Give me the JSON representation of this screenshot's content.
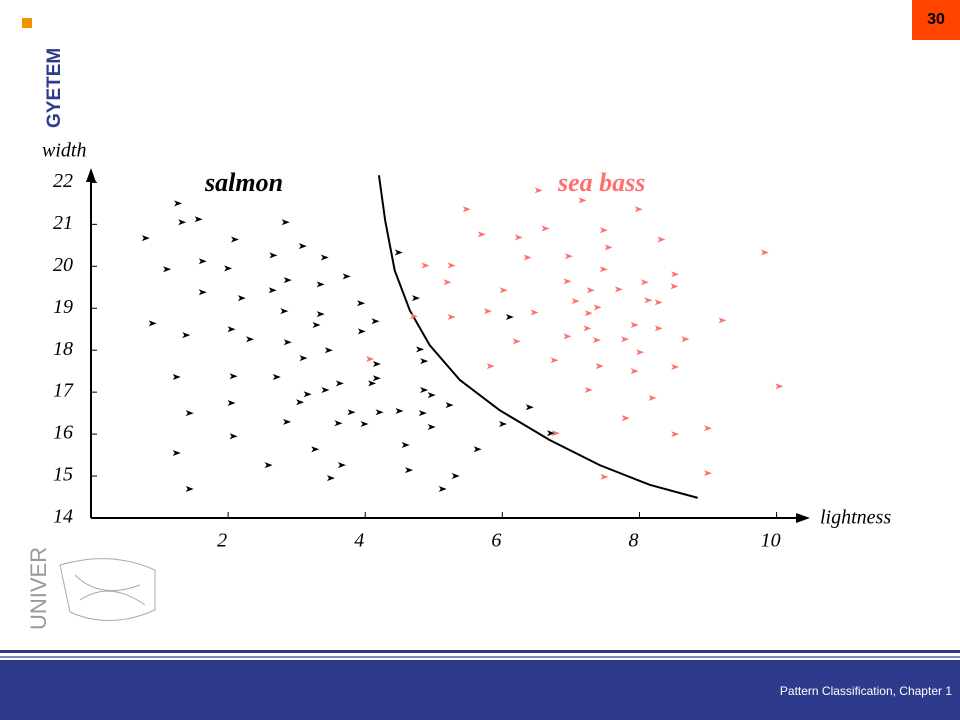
{
  "slide_number": "30",
  "logo_text": "GYETEM",
  "side_text": "UNIVER",
  "footer": "Pattern Classification, Chapter 1",
  "chart_data": {
    "type": "scatter",
    "x_label": "lightness",
    "y_label": "width",
    "xlim": [
      0,
      10.4
    ],
    "ylim": [
      14,
      22.2
    ],
    "xticks": [
      2,
      4,
      6,
      8,
      10
    ],
    "yticks": [
      14,
      15,
      16,
      17,
      18,
      19,
      20,
      21,
      22
    ],
    "series": [
      {
        "name": "salmon",
        "color": "#000000",
        "x": [
          0.8,
          1.27,
          1.33,
          1.57,
          0.9,
          1.11,
          1.63,
          1.63,
          1.39,
          1.25,
          1.44,
          1.25,
          1.44,
          2.1,
          2.0,
          2.2,
          2.05,
          2.32,
          2.08,
          2.05,
          2.08,
          2.59,
          2.84,
          2.66,
          2.87,
          2.65,
          2.82,
          2.87,
          2.71,
          2.86,
          3.09,
          3.41,
          3.1,
          3.29,
          3.35,
          3.35,
          3.05,
          3.16,
          3.42,
          3.47,
          3.27,
          3.5,
          3.66,
          3.63,
          3.61,
          3.8,
          3.73,
          3.94,
          3.95,
          3.99,
          4.15,
          4.17,
          4.17,
          4.1,
          4.21,
          4.49,
          4.74,
          4.5,
          4.59,
          4.64,
          4.8,
          4.86,
          4.86,
          4.84,
          4.97,
          4.97,
          5.23,
          5.13,
          5.32,
          5.64,
          6.01,
          6.11,
          6.4,
          6.71
        ],
        "y": [
          20.67,
          21.5,
          21.05,
          21.12,
          18.64,
          19.93,
          20.12,
          19.38,
          18.36,
          17.36,
          16.5,
          15.55,
          14.69,
          20.64,
          19.95,
          19.24,
          18.5,
          18.26,
          17.38,
          16.74,
          15.95,
          15.26,
          21.05,
          20.26,
          19.67,
          19.43,
          18.93,
          18.19,
          17.36,
          16.29,
          20.48,
          20.21,
          17.81,
          18.6,
          18.86,
          19.57,
          16.76,
          16.95,
          17.05,
          18.0,
          15.64,
          14.95,
          15.26,
          17.21,
          16.26,
          16.52,
          19.76,
          19.12,
          18.45,
          16.24,
          18.69,
          17.67,
          17.33,
          17.21,
          16.52,
          20.33,
          19.24,
          16.55,
          15.74,
          15.14,
          18.02,
          17.74,
          17.05,
          16.5,
          16.17,
          16.93,
          16.69,
          14.69,
          15.0,
          15.64,
          16.24,
          18.79,
          16.64,
          16.02
        ]
      },
      {
        "name": "sea bass",
        "color": "#ff6f6f",
        "x": [
          5.48,
          5.7,
          6.53,
          7.17,
          7.99,
          4.88,
          5.26,
          5.2,
          4.71,
          5.26,
          5.79,
          6.02,
          6.24,
          6.37,
          6.63,
          6.21,
          6.47,
          5.83,
          6.76,
          6.95,
          7.07,
          6.97,
          7.29,
          7.26,
          7.39,
          7.48,
          7.55,
          7.48,
          7.7,
          8.08,
          8.32,
          8.13,
          8.28,
          8.52,
          8.51,
          8.28,
          7.93,
          7.38,
          7.24,
          6.95,
          7.79,
          8.01,
          7.93,
          7.42,
          7.26,
          8.52,
          8.67,
          9.21,
          9.83,
          10.04,
          8.19,
          7.8,
          8.52,
          9.0,
          9.0,
          7.49,
          6.78,
          4.07
        ],
        "y": [
          21.36,
          20.76,
          21.81,
          21.57,
          21.36,
          20.02,
          20.02,
          19.62,
          18.81,
          18.79,
          18.93,
          19.43,
          20.69,
          20.21,
          20.9,
          18.21,
          18.9,
          17.62,
          17.76,
          19.64,
          19.17,
          20.24,
          19.43,
          18.88,
          19.02,
          20.86,
          20.45,
          19.93,
          19.45,
          19.62,
          20.64,
          19.19,
          19.14,
          19.81,
          19.52,
          18.52,
          18.6,
          18.24,
          18.52,
          18.33,
          18.26,
          17.95,
          17.5,
          17.62,
          17.05,
          17.6,
          18.26,
          18.71,
          20.33,
          17.14,
          16.86,
          16.38,
          16.0,
          16.14,
          15.07,
          14.98,
          16.02,
          17.79
        ]
      }
    ],
    "boundary": {
      "color": "#000000",
      "x": [
        4.2,
        4.29,
        4.43,
        4.65,
        4.94,
        5.38,
        5.96,
        6.69,
        7.42,
        8.15,
        8.85
      ],
      "y": [
        22.17,
        21.1,
        19.9,
        18.95,
        18.12,
        17.29,
        16.57,
        15.86,
        15.26,
        14.79,
        14.48
      ]
    }
  }
}
